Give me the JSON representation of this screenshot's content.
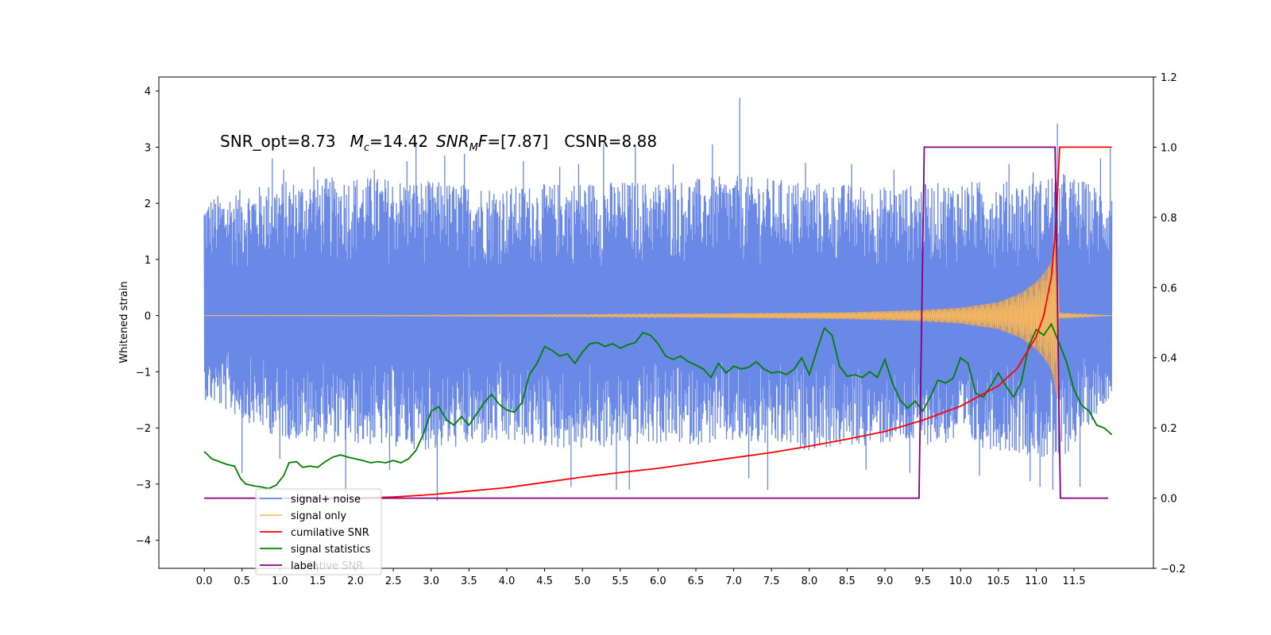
{
  "chart_data": {
    "type": "line",
    "annotations": {
      "snr_opt": "SNR_opt=8.73",
      "mc_symbol": "M",
      "mc_sub": "c",
      "mc_value": "=14.42",
      "snrmf_symbol": "SNR",
      "snrmf_sub": "M",
      "snrmf_f": "F",
      "snrmf_value": "=[7.87]",
      "csnr": "CSNR=8.88"
    },
    "ylabel_left": "Whitened strain",
    "xlim": [
      -0.6,
      12.55
    ],
    "ylim_left": [
      -4.5,
      4.25
    ],
    "ylim_right": [
      -0.2,
      1.2
    ],
    "x_ticks": [
      "0.0",
      "0.5",
      "1.0",
      "1.5",
      "2.0",
      "2.5",
      "3.0",
      "3.5",
      "4.0",
      "4.5",
      "5.0",
      "5.5",
      "6.0",
      "6.5",
      "7.0",
      "7.5",
      "8.0",
      "8.5",
      "9.0",
      "9.5",
      "10.0",
      "10.5",
      "11.0",
      "11.5"
    ],
    "y_left_ticks": [
      "4",
      "3",
      "2",
      "1",
      "0",
      "−1",
      "−2",
      "−3",
      "−4"
    ],
    "y_right_ticks": [
      "1.2",
      "1.0",
      "0.8",
      "0.6",
      "0.4",
      "0.2",
      "0.0",
      "−0.2"
    ],
    "legend": {
      "placement": "lower-left",
      "entries": [
        {
          "label": "signal+ noise",
          "color": "#6a88e6"
        },
        {
          "label": "signal only",
          "color": "#ffbe5c"
        },
        {
          "label": "cumilative SNR",
          "color": "#ff0000"
        },
        {
          "label": "signal statistics",
          "color": "#008000"
        },
        {
          "label": "label",
          "color": "#800080"
        }
      ],
      "ghost_text": "lative SNR"
    },
    "series": [
      {
        "name": "signal+ noise",
        "axis": "left",
        "color": "#6a88e6",
        "x_range": [
          0.0,
          12.0
        ],
        "envelope_upper": [
          [
            0.0,
            2.1
          ],
          [
            1.0,
            2.4
          ],
          [
            2.0,
            2.5
          ],
          [
            3.0,
            2.4
          ],
          [
            4.0,
            2.3
          ],
          [
            5.0,
            2.4
          ],
          [
            6.0,
            2.4
          ],
          [
            7.0,
            2.5
          ],
          [
            8.0,
            2.4
          ],
          [
            9.0,
            2.3
          ],
          [
            10.0,
            2.4
          ],
          [
            11.0,
            2.4
          ],
          [
            11.28,
            2.6
          ],
          [
            12.0,
            2.2
          ]
        ],
        "envelope_lower": [
          [
            0.0,
            -1.5
          ],
          [
            1.0,
            -2.2
          ],
          [
            2.0,
            -2.3
          ],
          [
            3.0,
            -2.4
          ],
          [
            4.0,
            -2.3
          ],
          [
            5.0,
            -2.4
          ],
          [
            6.0,
            -2.3
          ],
          [
            7.0,
            -2.3
          ],
          [
            8.0,
            -2.4
          ],
          [
            9.0,
            -2.3
          ],
          [
            10.0,
            -2.3
          ],
          [
            11.0,
            -2.5
          ],
          [
            11.28,
            -2.7
          ],
          [
            12.0,
            -1.4
          ]
        ],
        "spikes": [
          [
            0.9,
            2.8
          ],
          [
            1.05,
            2.6
          ],
          [
            1.45,
            2.65
          ],
          [
            2.25,
            2.6
          ],
          [
            2.68,
            2.75
          ],
          [
            2.8,
            3.05
          ],
          [
            3.18,
            2.85
          ],
          [
            3.44,
            2.88
          ],
          [
            4.22,
            2.75
          ],
          [
            4.7,
            2.65
          ],
          [
            4.95,
            2.7
          ],
          [
            5.28,
            3.05
          ],
          [
            5.7,
            3.05
          ],
          [
            7.08,
            3.88
          ],
          [
            6.2,
            2.7
          ],
          [
            6.72,
            3.05
          ],
          [
            7.95,
            2.72
          ],
          [
            8.56,
            2.7
          ],
          [
            9.12,
            2.6
          ],
          [
            10.64,
            2.7
          ],
          [
            10.96,
            2.55
          ],
          [
            11.28,
            3.42
          ],
          [
            11.85,
            2.8
          ],
          [
            11.98,
            2.98
          ],
          [
            0.5,
            -2.8
          ],
          [
            1.0,
            -2.55
          ],
          [
            1.87,
            -3.15
          ],
          [
            2.45,
            -2.75
          ],
          [
            3.08,
            -3.3
          ],
          [
            4.85,
            -3.05
          ],
          [
            5.45,
            -3.1
          ],
          [
            5.62,
            -3.1
          ],
          [
            7.2,
            -2.9
          ],
          [
            7.45,
            -3.1
          ],
          [
            8.75,
            -2.75
          ],
          [
            9.33,
            -2.8
          ],
          [
            10.25,
            -2.85
          ],
          [
            10.92,
            -2.95
          ],
          [
            11.05,
            -3.05
          ],
          [
            11.22,
            -3.1
          ],
          [
            11.58,
            -3.05
          ]
        ]
      },
      {
        "name": "signal only",
        "axis": "left",
        "color": "#ffbe5c",
        "fill_color": "#c19a78",
        "amplitude": [
          [
            0.0,
            0.005
          ],
          [
            3.0,
            0.01
          ],
          [
            5.0,
            0.02
          ],
          [
            7.0,
            0.04
          ],
          [
            8.5,
            0.06
          ],
          [
            9.5,
            0.1
          ],
          [
            10.0,
            0.14
          ],
          [
            10.5,
            0.24
          ],
          [
            10.8,
            0.4
          ],
          [
            11.0,
            0.6
          ],
          [
            11.1,
            0.75
          ],
          [
            11.2,
            0.95
          ],
          [
            11.28,
            1.5
          ],
          [
            11.3,
            0.05
          ],
          [
            12.0,
            0.0
          ]
        ]
      },
      {
        "name": "cumilative SNR",
        "axis": "right",
        "color": "#ff0000",
        "points": [
          [
            2.0,
            0.0
          ],
          [
            2.5,
            0.003
          ],
          [
            3.0,
            0.01
          ],
          [
            3.5,
            0.02
          ],
          [
            4.0,
            0.03
          ],
          [
            4.5,
            0.045
          ],
          [
            5.0,
            0.06
          ],
          [
            5.5,
            0.073
          ],
          [
            6.0,
            0.085
          ],
          [
            6.5,
            0.1
          ],
          [
            7.0,
            0.115
          ],
          [
            7.5,
            0.13
          ],
          [
            8.0,
            0.148
          ],
          [
            8.5,
            0.168
          ],
          [
            9.0,
            0.19
          ],
          [
            9.5,
            0.222
          ],
          [
            10.0,
            0.262
          ],
          [
            10.5,
            0.32
          ],
          [
            10.75,
            0.37
          ],
          [
            11.0,
            0.46
          ],
          [
            11.1,
            0.52
          ],
          [
            11.2,
            0.63
          ],
          [
            11.25,
            0.75
          ],
          [
            11.28,
            0.86
          ],
          [
            11.31,
            1.0
          ],
          [
            12.0,
            1.0
          ]
        ]
      },
      {
        "name": "signal statistics",
        "axis": "left",
        "color": "#008000",
        "points": [
          [
            0.0,
            -2.42
          ],
          [
            0.1,
            -2.55
          ],
          [
            0.2,
            -2.6
          ],
          [
            0.3,
            -2.65
          ],
          [
            0.4,
            -2.68
          ],
          [
            0.48,
            -2.9
          ],
          [
            0.55,
            -3.0
          ],
          [
            0.65,
            -3.03
          ],
          [
            0.75,
            -3.05
          ],
          [
            0.85,
            -3.08
          ],
          [
            0.95,
            -3.02
          ],
          [
            1.05,
            -2.85
          ],
          [
            1.12,
            -2.62
          ],
          [
            1.22,
            -2.6
          ],
          [
            1.3,
            -2.7
          ],
          [
            1.4,
            -2.68
          ],
          [
            1.5,
            -2.7
          ],
          [
            1.6,
            -2.6
          ],
          [
            1.7,
            -2.52
          ],
          [
            1.8,
            -2.48
          ],
          [
            1.9,
            -2.52
          ],
          [
            2.0,
            -2.55
          ],
          [
            2.1,
            -2.58
          ],
          [
            2.2,
            -2.62
          ],
          [
            2.3,
            -2.6
          ],
          [
            2.4,
            -2.62
          ],
          [
            2.5,
            -2.58
          ],
          [
            2.6,
            -2.62
          ],
          [
            2.7,
            -2.55
          ],
          [
            2.8,
            -2.4
          ],
          [
            2.9,
            -2.1
          ],
          [
            3.0,
            -1.7
          ],
          [
            3.1,
            -1.62
          ],
          [
            3.2,
            -1.85
          ],
          [
            3.3,
            -1.95
          ],
          [
            3.4,
            -1.8
          ],
          [
            3.5,
            -1.95
          ],
          [
            3.6,
            -1.75
          ],
          [
            3.7,
            -1.55
          ],
          [
            3.8,
            -1.4
          ],
          [
            3.9,
            -1.58
          ],
          [
            4.0,
            -1.68
          ],
          [
            4.1,
            -1.72
          ],
          [
            4.2,
            -1.55
          ],
          [
            4.3,
            -1.05
          ],
          [
            4.4,
            -0.85
          ],
          [
            4.5,
            -0.55
          ],
          [
            4.6,
            -0.62
          ],
          [
            4.7,
            -0.72
          ],
          [
            4.8,
            -0.68
          ],
          [
            4.9,
            -0.85
          ],
          [
            5.0,
            -0.65
          ],
          [
            5.1,
            -0.5
          ],
          [
            5.2,
            -0.48
          ],
          [
            5.3,
            -0.55
          ],
          [
            5.4,
            -0.5
          ],
          [
            5.5,
            -0.58
          ],
          [
            5.6,
            -0.52
          ],
          [
            5.7,
            -0.48
          ],
          [
            5.8,
            -0.3
          ],
          [
            5.9,
            -0.35
          ],
          [
            6.0,
            -0.5
          ],
          [
            6.1,
            -0.72
          ],
          [
            6.2,
            -0.78
          ],
          [
            6.3,
            -0.72
          ],
          [
            6.4,
            -0.82
          ],
          [
            6.5,
            -0.88
          ],
          [
            6.6,
            -0.95
          ],
          [
            6.7,
            -1.1
          ],
          [
            6.8,
            -0.85
          ],
          [
            6.9,
            -1.02
          ],
          [
            7.0,
            -0.9
          ],
          [
            7.1,
            -0.95
          ],
          [
            7.2,
            -0.92
          ],
          [
            7.3,
            -0.82
          ],
          [
            7.4,
            -0.95
          ],
          [
            7.5,
            -1.02
          ],
          [
            7.6,
            -1.0
          ],
          [
            7.7,
            -1.05
          ],
          [
            7.8,
            -0.95
          ],
          [
            7.9,
            -0.75
          ],
          [
            8.0,
            -1.05
          ],
          [
            8.1,
            -0.62
          ],
          [
            8.2,
            -0.22
          ],
          [
            8.3,
            -0.35
          ],
          [
            8.4,
            -0.9
          ],
          [
            8.5,
            -1.08
          ],
          [
            8.6,
            -1.05
          ],
          [
            8.7,
            -1.1
          ],
          [
            8.8,
            -1.0
          ],
          [
            8.9,
            -1.1
          ],
          [
            9.0,
            -0.78
          ],
          [
            9.1,
            -1.2
          ],
          [
            9.2,
            -1.5
          ],
          [
            9.3,
            -1.65
          ],
          [
            9.4,
            -1.52
          ],
          [
            9.5,
            -1.7
          ],
          [
            9.6,
            -1.45
          ],
          [
            9.7,
            -1.15
          ],
          [
            9.8,
            -1.2
          ],
          [
            9.9,
            -1.12
          ],
          [
            10.0,
            -0.75
          ],
          [
            10.1,
            -0.85
          ],
          [
            10.2,
            -1.38
          ],
          [
            10.3,
            -1.45
          ],
          [
            10.4,
            -1.25
          ],
          [
            10.5,
            -1.02
          ],
          [
            10.6,
            -1.25
          ],
          [
            10.7,
            -1.45
          ],
          [
            10.8,
            -1.2
          ],
          [
            10.9,
            -0.55
          ],
          [
            11.0,
            -0.25
          ],
          [
            11.1,
            -0.35
          ],
          [
            11.2,
            -0.15
          ],
          [
            11.3,
            -0.48
          ],
          [
            11.4,
            -0.82
          ],
          [
            11.5,
            -1.32
          ],
          [
            11.6,
            -1.6
          ],
          [
            11.7,
            -1.7
          ],
          [
            11.8,
            -1.95
          ],
          [
            11.9,
            -2.0
          ],
          [
            12.0,
            -2.12
          ]
        ]
      },
      {
        "name": "label",
        "axis": "right",
        "color": "#800080",
        "points": [
          [
            0.0,
            0.0
          ],
          [
            9.45,
            0.0
          ],
          [
            9.52,
            1.0
          ],
          [
            11.25,
            1.0
          ],
          [
            11.32,
            0.0
          ],
          [
            11.95,
            0.0
          ]
        ]
      }
    ]
  }
}
